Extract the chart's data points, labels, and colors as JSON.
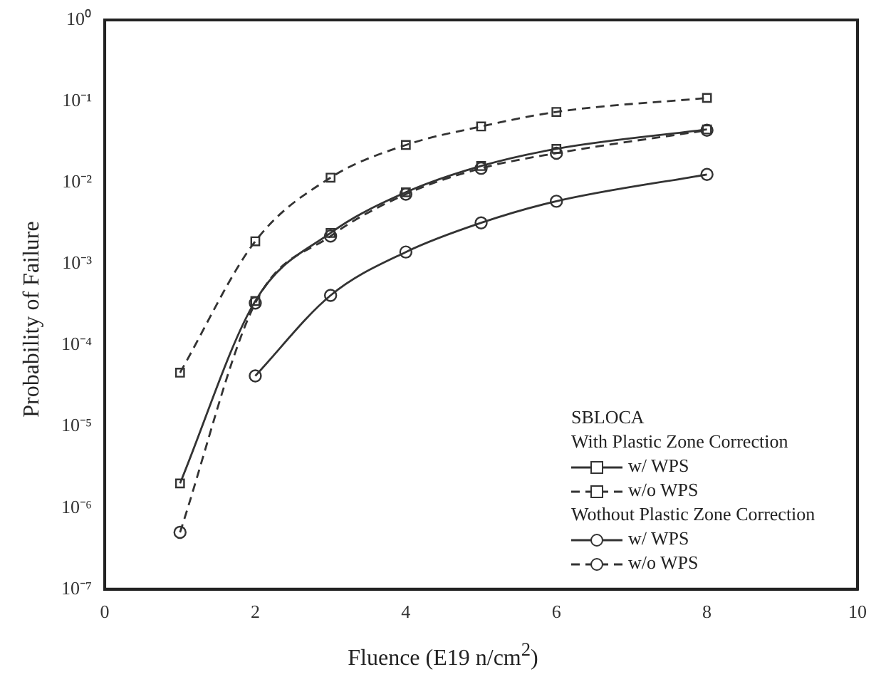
{
  "chart_data": {
    "type": "line",
    "xlabel": "Fluence (E19 n/cm$^{2}$)",
    "ylabel": "Probability of Failure",
    "xlim": [
      0,
      10
    ],
    "xticks": [
      0,
      2,
      4,
      6,
      8,
      10
    ],
    "ylim": [
      1e-07,
      1
    ],
    "yticks": [
      {
        "value": 1e-07,
        "label": "10⁻⁷"
      },
      {
        "value": 1e-06,
        "label": "10⁻⁶"
      },
      {
        "value": 1e-05,
        "label": "10⁻⁵"
      },
      {
        "value": 0.0001,
        "label": "10⁻⁴"
      },
      {
        "value": 0.001,
        "label": "10⁻³"
      },
      {
        "value": 0.01,
        "label": "10⁻²"
      },
      {
        "value": 0.1,
        "label": "10⁻¹"
      },
      {
        "value": 1,
        "label": "10⁰"
      }
    ],
    "log": "y",
    "grid": false,
    "legend": "bottom right",
    "legend_title": "SBLOCA",
    "annotations": [
      "With Plastic Zone Correction",
      "Wothout Plastic Zone Correction"
    ],
    "series": [
      {
        "name": "w/ WPS",
        "color": "#333333",
        "marker": "square",
        "line_style": "solid",
        "x": [
          1,
          2,
          3,
          4,
          5,
          6,
          8
        ],
        "values": [
          2e-06,
          0.00035,
          0.0024,
          0.0076,
          0.016,
          0.026,
          0.045
        ]
      },
      {
        "name": "w/o WPS",
        "color": "#333333",
        "marker": "square",
        "line_style": "dashed",
        "x": [
          1,
          2,
          3,
          4,
          5,
          6,
          8
        ],
        "values": [
          4.6e-05,
          0.0019,
          0.0115,
          0.029,
          0.049,
          0.074,
          0.11
        ]
      },
      {
        "name": "w/ WPS",
        "color": "#333333",
        "marker": "circle",
        "line_style": "solid",
        "x": [
          2,
          3,
          4,
          5,
          6,
          8
        ],
        "values": [
          4.2e-05,
          0.00041,
          0.0014,
          0.0032,
          0.0059,
          0.0126
        ]
      },
      {
        "name": "w/o WPS",
        "color": "#333333",
        "marker": "circle",
        "line_style": "dashed",
        "x": [
          1,
          2,
          3,
          4,
          5,
          6,
          8
        ],
        "values": [
          5e-07,
          0.00033,
          0.0022,
          0.0072,
          0.015,
          0.023,
          0.044
        ]
      }
    ]
  }
}
